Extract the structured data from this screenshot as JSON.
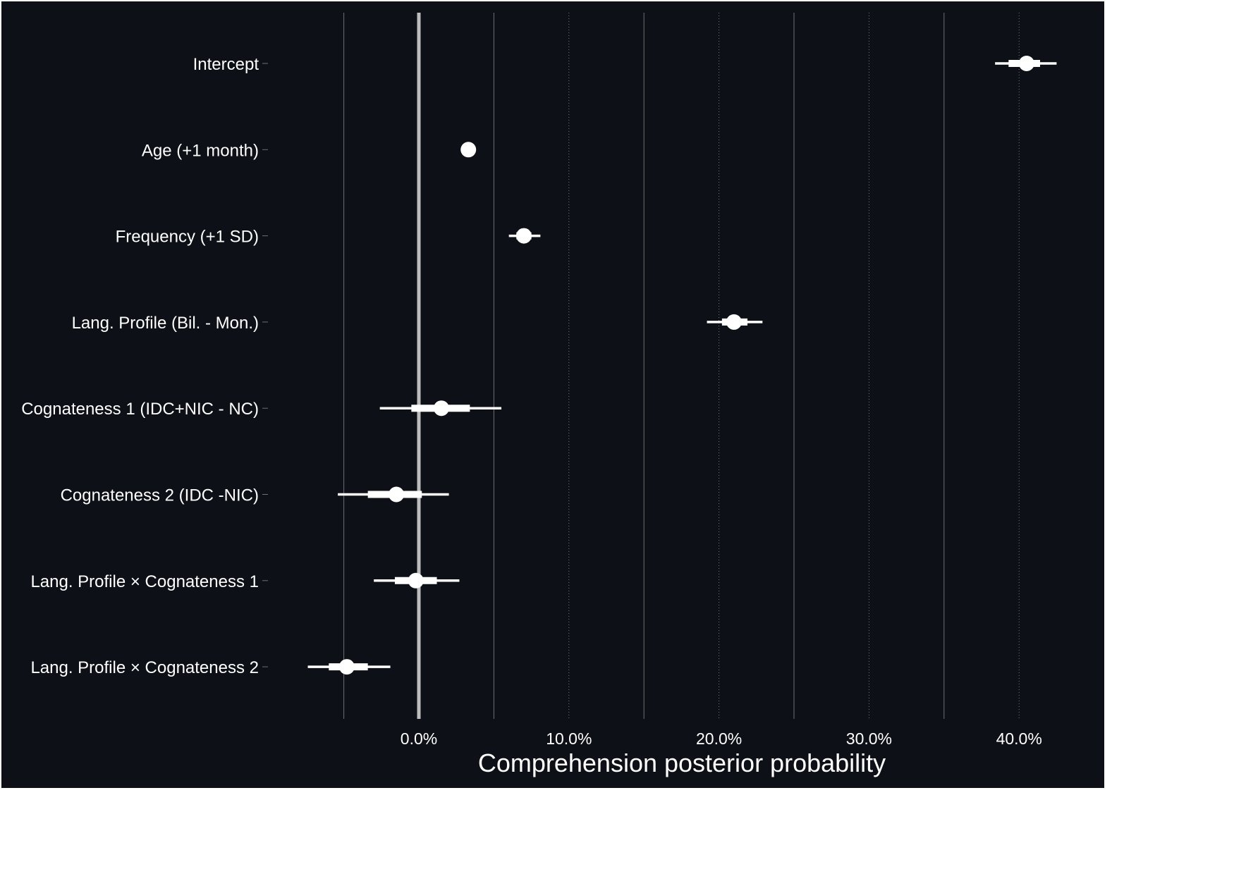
{
  "chart_data": {
    "type": "forest",
    "xlabel": "Comprehension posterior probability",
    "ylabel": "",
    "xlim": [
      -0.05,
      0.45
    ],
    "x_ticks": [
      0.0,
      0.1,
      0.2,
      0.3,
      0.4
    ],
    "x_tick_labels": [
      "0.0%",
      "10.0%",
      "20.0%",
      "30.0%",
      "40.0%"
    ],
    "x_minor_gridlines": [
      -0.05,
      0.05,
      0.15,
      0.25,
      0.35
    ],
    "reference_line": 0.0,
    "categories": [
      "Intercept",
      "Age (+1 month)",
      "Frequency (+1 SD)",
      "Lang. Profile (Bil. - Mon.)",
      "Cognateness 1 (IDC+NIC - NC)",
      "Cognateness 2 (IDC -NIC)",
      "Lang. Profile × Cognateness 1",
      "Lang. Profile × Cognateness 2"
    ],
    "estimates": [
      {
        "term": "Intercept",
        "median": 0.405,
        "inner": [
          0.393,
          0.414
        ],
        "outer": [
          0.384,
          0.425
        ]
      },
      {
        "term": "Age (+1 month)",
        "median": 0.033,
        "inner": [
          0.032,
          0.035
        ],
        "outer": [
          0.031,
          0.036
        ]
      },
      {
        "term": "Frequency (+1 SD)",
        "median": 0.07,
        "inner": [
          0.065,
          0.075
        ],
        "outer": [
          0.06,
          0.081
        ]
      },
      {
        "term": "Lang. Profile (Bil. - Mon.)",
        "median": 0.21,
        "inner": [
          0.202,
          0.219
        ],
        "outer": [
          0.192,
          0.229
        ]
      },
      {
        "term": "Cognateness 1 (IDC+NIC - NC)",
        "median": 0.015,
        "inner": [
          -0.005,
          0.034
        ],
        "outer": [
          -0.026,
          0.055
        ]
      },
      {
        "term": "Cognateness 2 (IDC -NIC)",
        "median": -0.015,
        "inner": [
          -0.034,
          0.002
        ],
        "outer": [
          -0.054,
          0.02
        ]
      },
      {
        "term": "Lang. Profile × Cognateness 1",
        "median": -0.002,
        "inner": [
          -0.016,
          0.012
        ],
        "outer": [
          -0.03,
          0.027
        ]
      },
      {
        "term": "Lang. Profile × Cognateness 2",
        "median": -0.048,
        "inner": [
          -0.06,
          -0.034
        ],
        "outer": [
          -0.074,
          -0.019
        ]
      }
    ],
    "grid": true,
    "legend": "none"
  },
  "colors": {
    "background": "#0d1017",
    "panel_border": "#ffffff",
    "major_grid": "#707070",
    "minor_grid": "#7a7a7a",
    "zero_line": "#bdbdbd",
    "marks": "#ffffff",
    "text": "#ffffff"
  }
}
